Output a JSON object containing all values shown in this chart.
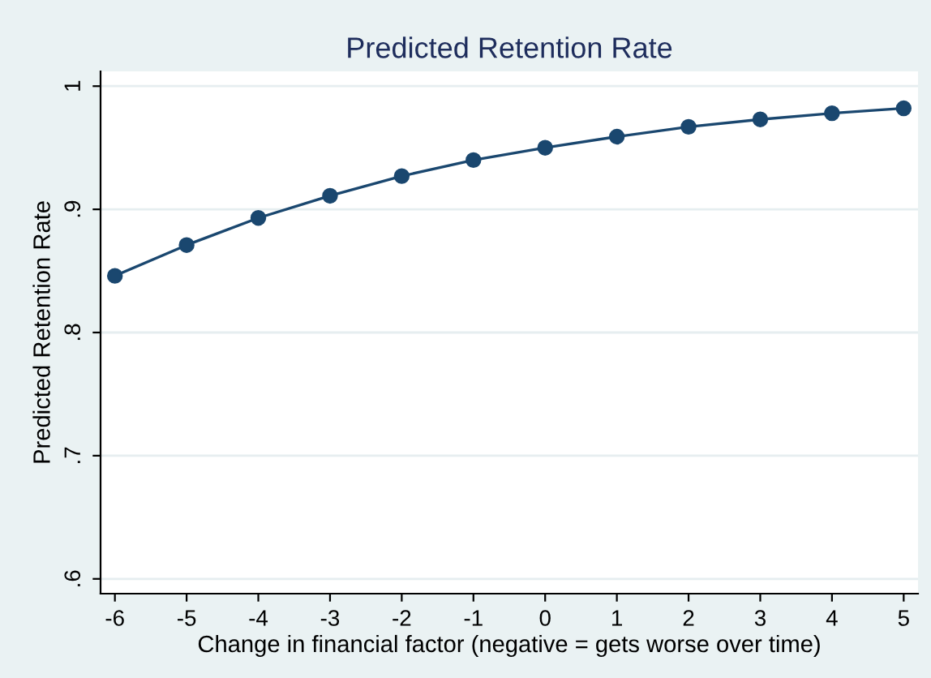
{
  "chart_data": {
    "type": "line",
    "title": "Predicted Retention Rate",
    "xlabel": "Change in financial factor (negative = gets worse over time)",
    "ylabel": "Predicted Retention Rate",
    "x": [
      -6,
      -5,
      -4,
      -3,
      -2,
      -1,
      0,
      1,
      2,
      3,
      4,
      5
    ],
    "series": [
      {
        "color": "#1a476f",
        "values": [
          0.846,
          0.871,
          0.893,
          0.911,
          0.927,
          0.94,
          0.95,
          0.959,
          0.967,
          0.973,
          0.978,
          0.982
        ]
      }
    ],
    "xlim": [
      -6.2,
      5.2
    ],
    "ylim": [
      0.588,
      1.012
    ],
    "xticks": [
      -6,
      -5,
      -4,
      -3,
      -2,
      -1,
      0,
      1,
      2,
      3,
      4,
      5
    ],
    "yticks": [
      {
        "value": 0.6,
        "label": ".6"
      },
      {
        "value": 0.7,
        "label": ".7"
      },
      {
        "value": 0.8,
        "label": ".8"
      },
      {
        "value": 0.9,
        "label": ".9"
      },
      {
        "value": 1,
        "label": "1"
      }
    ],
    "grid": "y",
    "marker": "circle",
    "line_style": "solid",
    "legend": false
  }
}
